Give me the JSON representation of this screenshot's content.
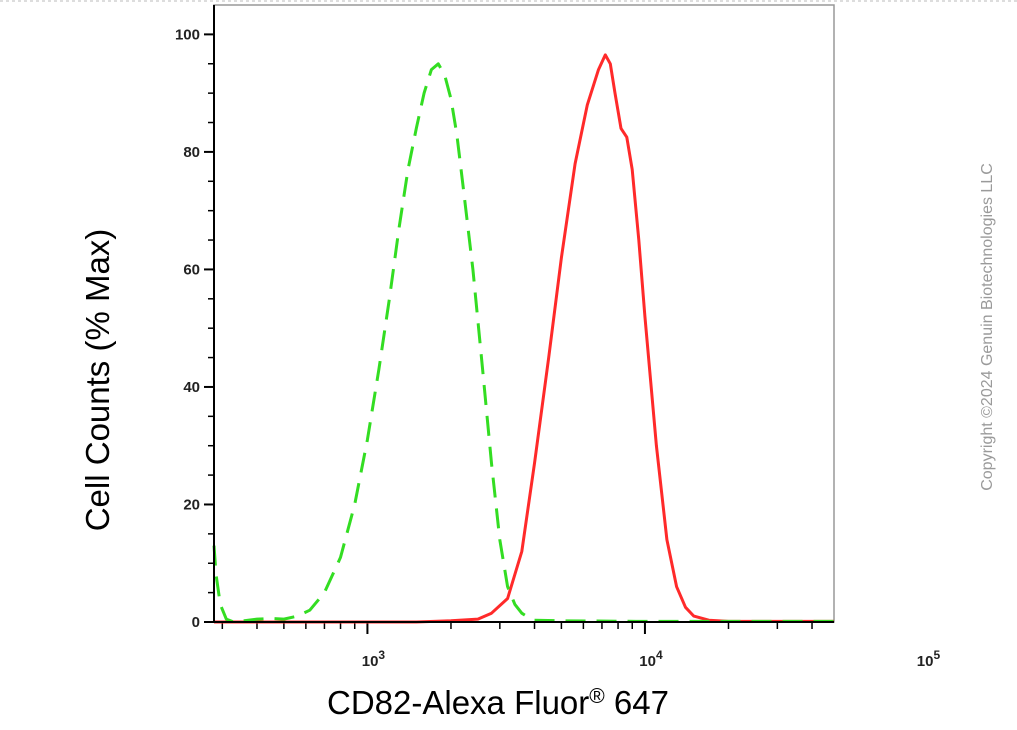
{
  "copyright": "Copyright ©2024 Genuin Biotechnologies LLC",
  "chart_data": {
    "type": "line",
    "xlabel_main": "CD82-Alexa Fluor",
    "xlabel_sup": "®",
    "xlabel_suffix": " 647",
    "ylabel": "Cell Counts (% Max)",
    "xscale": "log",
    "xlim": [
      280,
      48000
    ],
    "ylim": [
      0,
      105
    ],
    "yticks": [
      "0",
      "20",
      "40",
      "60",
      "80",
      "100"
    ],
    "xticks": [
      {
        "base": "10",
        "exp": "3",
        "value": 1000
      },
      {
        "base": "10",
        "exp": "4",
        "value": 10000
      },
      {
        "base": "10",
        "exp": "5",
        "value": 100000
      }
    ],
    "grid": false,
    "legend": "none",
    "series": [
      {
        "color": "#ff2a2a",
        "style": "solid",
        "x": [
          280,
          1500,
          2000,
          2500,
          2800,
          3200,
          3600,
          4000,
          4500,
          5000,
          5600,
          6200,
          6800,
          7200,
          7500,
          7800,
          8200,
          8600,
          9000,
          9500,
          10000,
          11000,
          12000,
          13000,
          14000,
          15000,
          17000,
          20000,
          48000
        ],
        "y": [
          0,
          0,
          0.2,
          0.5,
          1.5,
          4,
          12,
          27,
          45,
          62,
          78,
          88,
          94,
          96.5,
          95,
          90,
          84,
          82.5,
          77,
          65,
          52,
          30,
          14,
          6,
          2.5,
          1,
          0.3,
          0.1,
          0.1
        ]
      },
      {
        "color": "#33dd22",
        "style": "dashed",
        "x": [
          280,
          285,
          295,
          310,
          330,
          360,
          400,
          450,
          500,
          560,
          620,
          700,
          800,
          900,
          1000,
          1100,
          1200,
          1300,
          1400,
          1500,
          1600,
          1700,
          1800,
          1900,
          2000,
          2100,
          2200,
          2400,
          2600,
          2800,
          3000,
          3200,
          3400,
          3600,
          3800,
          4000,
          5000,
          10000,
          48000
        ],
        "y": [
          13,
          8,
          3,
          0.5,
          0,
          0.2,
          0.5,
          0.6,
          0.5,
          1,
          2,
          5,
          11,
          20,
          31,
          43,
          55,
          67,
          77,
          84,
          90,
          94,
          95,
          93,
          89,
          83,
          75,
          60,
          43,
          27,
          14,
          6,
          3,
          1.5,
          0.8,
          0.3,
          0.2,
          0.1,
          0.1
        ]
      }
    ]
  }
}
